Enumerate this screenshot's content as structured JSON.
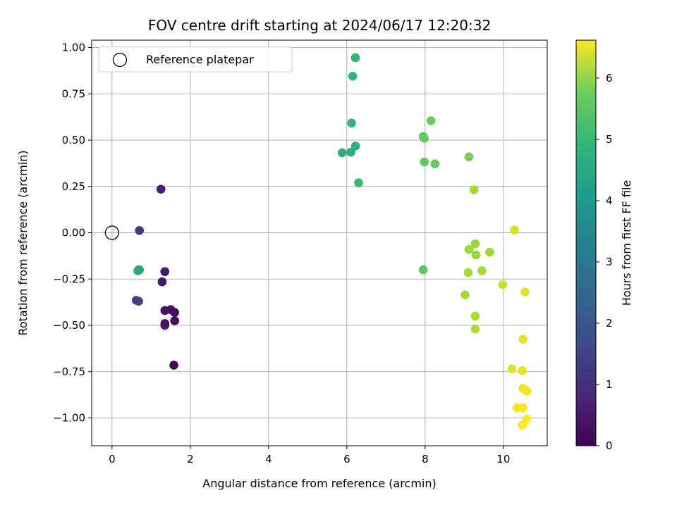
{
  "chart_data": {
    "type": "scatter",
    "title": "FOV centre drift starting at 2024/06/17 12:20:32",
    "xlabel": "Angular distance from reference (arcmin)",
    "ylabel": "Rotation from reference (arcmin)",
    "xlim": [
      -0.52,
      11.12
    ],
    "ylim": [
      -1.15,
      1.04
    ],
    "xticks": [
      0,
      2,
      4,
      6,
      8,
      10
    ],
    "xtick_labels": [
      "0",
      "2",
      "4",
      "6",
      "8",
      "10"
    ],
    "yticks": [
      1.0,
      0.75,
      0.5,
      0.25,
      0.0,
      -0.25,
      -0.5,
      -0.75,
      -1.0
    ],
    "ytick_labels": [
      "1.00",
      "0.75",
      "0.50",
      "0.25",
      "0.00",
      "−0.25",
      "−0.50",
      "−0.75",
      "−1.00"
    ],
    "grid": true,
    "legend": {
      "placement": "top-left",
      "entries": [
        "Reference platepar"
      ]
    },
    "reference_point": {
      "x": 0.0,
      "y": 0.0,
      "marker": "hollow-circle"
    },
    "colorbar": {
      "label": "Hours from first FF file",
      "range": [
        0,
        6.62
      ],
      "ticks": [
        0,
        1,
        2,
        3,
        4,
        5,
        6
      ],
      "tick_labels": [
        "0",
        "1",
        "2",
        "3",
        "4",
        "5",
        "6"
      ],
      "colormap": "viridis"
    },
    "points": [
      {
        "x": 1.58,
        "y": -0.715,
        "c": 0.0
      },
      {
        "x": 1.6,
        "y": -0.475,
        "c": 0.1
      },
      {
        "x": 1.6,
        "y": -0.43,
        "c": 0.15
      },
      {
        "x": 1.5,
        "y": -0.415,
        "c": 0.2
      },
      {
        "x": 1.35,
        "y": -0.42,
        "c": 0.3
      },
      {
        "x": 1.35,
        "y": -0.5,
        "c": 0.35
      },
      {
        "x": 1.35,
        "y": -0.49,
        "c": 0.35
      },
      {
        "x": 1.35,
        "y": -0.21,
        "c": 0.4
      },
      {
        "x": 1.28,
        "y": -0.265,
        "c": 0.45
      },
      {
        "x": 1.25,
        "y": 0.235,
        "c": 0.55
      },
      {
        "x": 0.7,
        "y": 0.012,
        "c": 1.1
      },
      {
        "x": 0.62,
        "y": -0.365,
        "c": 1.3
      },
      {
        "x": 0.68,
        "y": -0.37,
        "c": 1.35
      },
      {
        "x": 0.68,
        "y": -0.2,
        "c": 3.9
      },
      {
        "x": 0.7,
        "y": -0.2,
        "c": 3.95
      },
      {
        "x": 0.66,
        "y": -0.205,
        "c": 4.0
      },
      {
        "x": 5.88,
        "y": 0.432,
        "c": 4.1
      },
      {
        "x": 6.1,
        "y": 0.435,
        "c": 4.15
      },
      {
        "x": 6.22,
        "y": 0.468,
        "c": 4.2
      },
      {
        "x": 6.12,
        "y": 0.592,
        "c": 4.25
      },
      {
        "x": 6.15,
        "y": 0.845,
        "c": 4.3
      },
      {
        "x": 6.22,
        "y": 0.945,
        "c": 4.35
      },
      {
        "x": 6.3,
        "y": 0.27,
        "c": 4.45
      },
      {
        "x": 7.95,
        "y": -0.2,
        "c": 4.95
      },
      {
        "x": 7.98,
        "y": 0.382,
        "c": 5.0
      },
      {
        "x": 7.95,
        "y": 0.52,
        "c": 5.0
      },
      {
        "x": 7.98,
        "y": 0.51,
        "c": 5.05
      },
      {
        "x": 8.25,
        "y": 0.372,
        "c": 5.05
      },
      {
        "x": 8.15,
        "y": 0.605,
        "c": 5.1
      },
      {
        "x": 9.12,
        "y": 0.41,
        "c": 5.3
      },
      {
        "x": 9.25,
        "y": 0.232,
        "c": 5.75
      },
      {
        "x": 9.12,
        "y": -0.09,
        "c": 5.65
      },
      {
        "x": 9.28,
        "y": -0.06,
        "c": 5.6
      },
      {
        "x": 9.3,
        "y": -0.12,
        "c": 5.6
      },
      {
        "x": 9.65,
        "y": -0.105,
        "c": 5.65
      },
      {
        "x": 9.1,
        "y": -0.215,
        "c": 5.7
      },
      {
        "x": 9.45,
        "y": -0.205,
        "c": 5.7
      },
      {
        "x": 9.02,
        "y": -0.335,
        "c": 5.75
      },
      {
        "x": 9.28,
        "y": -0.45,
        "c": 5.8
      },
      {
        "x": 9.28,
        "y": -0.52,
        "c": 5.8
      },
      {
        "x": 9.98,
        "y": -0.28,
        "c": 6.1
      },
      {
        "x": 10.28,
        "y": 0.015,
        "c": 6.2
      },
      {
        "x": 10.55,
        "y": -0.32,
        "c": 6.3
      },
      {
        "x": 10.5,
        "y": -0.575,
        "c": 6.35
      },
      {
        "x": 10.22,
        "y": -0.735,
        "c": 6.3
      },
      {
        "x": 10.48,
        "y": -0.745,
        "c": 6.4
      },
      {
        "x": 10.5,
        "y": -0.84,
        "c": 6.45
      },
      {
        "x": 10.6,
        "y": -0.855,
        "c": 6.5
      },
      {
        "x": 10.35,
        "y": -0.945,
        "c": 6.5
      },
      {
        "x": 10.5,
        "y": -0.945,
        "c": 6.55
      },
      {
        "x": 10.6,
        "y": -1.005,
        "c": 6.6
      },
      {
        "x": 10.48,
        "y": -1.04,
        "c": 6.6
      }
    ]
  }
}
